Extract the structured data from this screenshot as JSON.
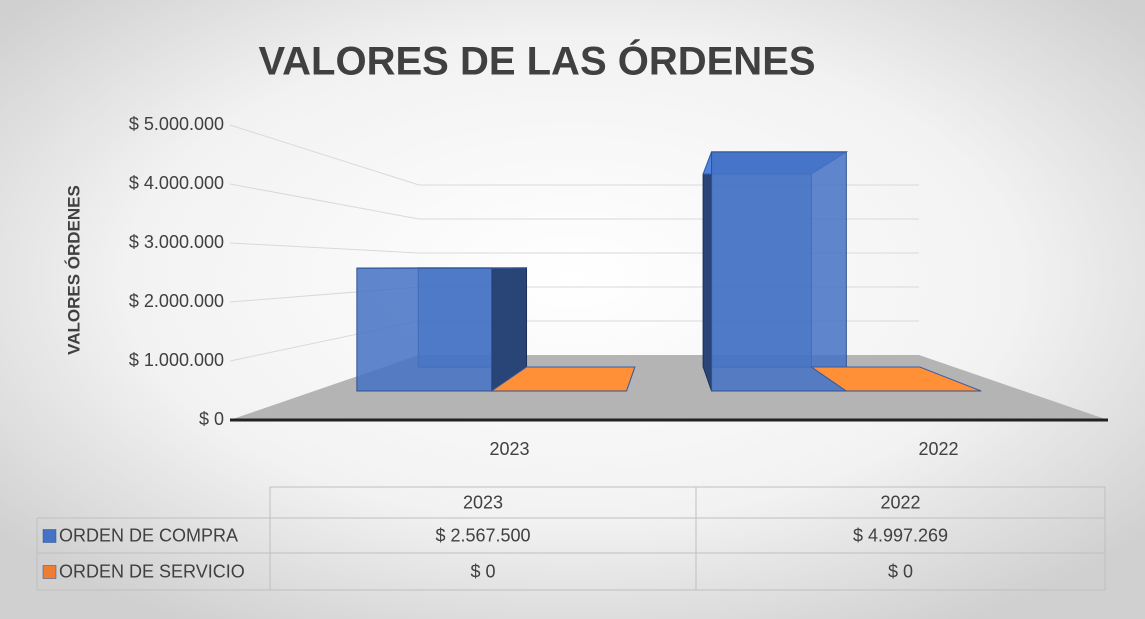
{
  "chart_data": {
    "type": "bar3d",
    "title": "VALORES DE LAS ÓRDENES",
    "y_label": "VALORES ÓRDENES",
    "categories": [
      "2023",
      "2022"
    ],
    "series": [
      {
        "name": "ORDEN DE COMPRA",
        "color": "#4472c4",
        "values": [
          2567500,
          4997269
        ],
        "value_labels": [
          "$ 2.567.500",
          "$ 4.997.269"
        ]
      },
      {
        "name": "ORDEN DE SERVICIO",
        "color": "#ed7d31",
        "values": [
          0,
          0
        ],
        "value_labels": [
          "$ 0",
          "$ 0"
        ]
      }
    ],
    "ylim": [
      0,
      5000000
    ],
    "yticks": [
      {
        "value": 0,
        "label": "$ 0"
      },
      {
        "value": 1000000,
        "label": "$ 1.000.000"
      },
      {
        "value": 2000000,
        "label": "$ 2.000.000"
      },
      {
        "value": 3000000,
        "label": "$ 3.000.000"
      },
      {
        "value": 4000000,
        "label": "$ 4.000.000"
      },
      {
        "value": 5000000,
        "label": "$ 5.000.000"
      }
    ],
    "grid": true
  }
}
